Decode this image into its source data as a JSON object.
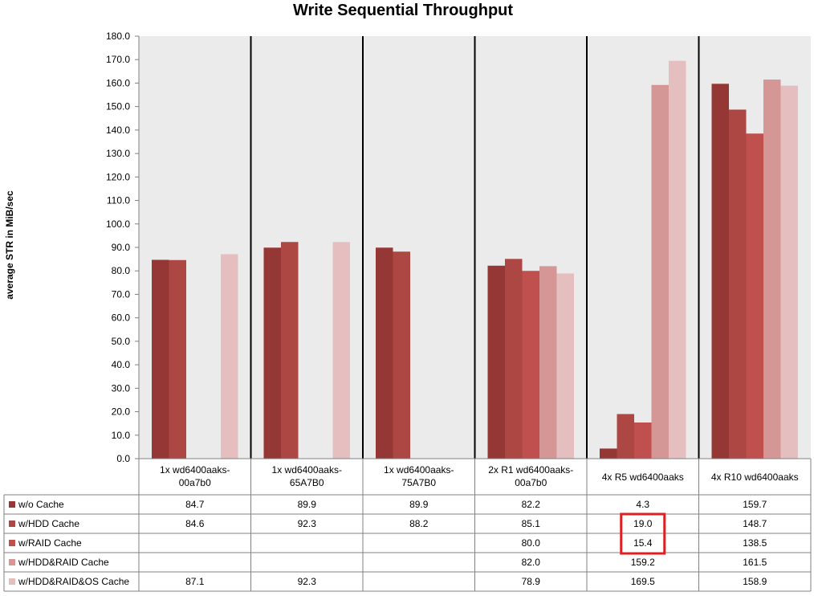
{
  "chart_data": {
    "type": "bar",
    "title": "Write Sequential Throughput",
    "ylabel": "average STR in MiB/sec",
    "xlabel": "",
    "ylim": [
      0,
      180
    ],
    "ytick_step": 10,
    "ytick_labels": [
      "0.0",
      "10.0",
      "20.0",
      "30.0",
      "40.0",
      "50.0",
      "60.0",
      "70.0",
      "80.0",
      "90.0",
      "100.0",
      "110.0",
      "120.0",
      "130.0",
      "140.0",
      "150.0",
      "160.0",
      "170.0",
      "180.0"
    ],
    "grid": false,
    "legend": "data-table",
    "categories": [
      [
        "1x wd6400aaks-",
        "00a7b0"
      ],
      [
        "1x wd6400aaks-",
        "65A7B0"
      ],
      [
        "1x wd6400aaks-",
        "75A7B0"
      ],
      [
        "2x R1 wd6400aaks-",
        "00a7b0"
      ],
      [
        "4x R5 wd6400aaks"
      ],
      [
        "4x R10 wd6400aaks"
      ]
    ],
    "series": [
      {
        "name": "w/o Cache",
        "color": "#953735",
        "values": [
          84.7,
          89.9,
          89.9,
          82.2,
          4.3,
          159.7
        ],
        "labels": [
          "84.7",
          "89.9",
          "89.9",
          "82.2",
          "4.3",
          "159.7"
        ]
      },
      {
        "name": "w/HDD Cache",
        "color": "#ac4744",
        "values": [
          84.6,
          92.3,
          88.2,
          85.1,
          19.0,
          148.7
        ],
        "labels": [
          "84.6",
          "92.3",
          "88.2",
          "85.1",
          "19.0",
          "148.7"
        ]
      },
      {
        "name": "w/RAID Cache",
        "color": "#c0504d",
        "values": [
          null,
          null,
          null,
          80.0,
          15.4,
          138.5
        ],
        "labels": [
          "",
          "",
          "",
          "80.0",
          "15.4",
          "138.5"
        ]
      },
      {
        "name": "w/HDD&RAID Cache",
        "color": "#d59795",
        "values": [
          null,
          null,
          null,
          82.0,
          159.2,
          161.5
        ],
        "labels": [
          "",
          "",
          "",
          "82.0",
          "159.2",
          "161.5"
        ]
      },
      {
        "name": "w/HDD&RAID&OS Cache",
        "color": "#e5bfbf",
        "values": [
          87.1,
          92.3,
          null,
          78.9,
          169.5,
          158.9
        ],
        "labels": [
          "87.1",
          "92.3",
          "",
          "78.9",
          "169.5",
          "158.9"
        ]
      }
    ],
    "highlight": {
      "color": "#e02020",
      "category_index": 4,
      "series_indices": [
        1,
        2
      ]
    }
  }
}
